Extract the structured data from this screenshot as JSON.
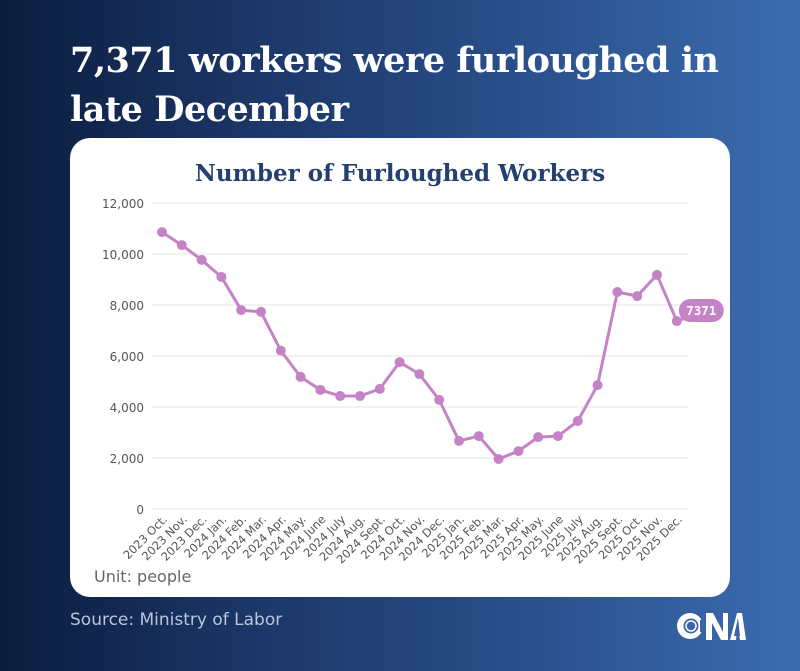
{
  "headline": "7,371 workers were furloughed in late December",
  "unit_label": "Unit: people",
  "source": "Source: Ministry of Labor",
  "logo": {
    "name": "cna-logo",
    "text": "CNA"
  },
  "colors": {
    "line": "#c583c7",
    "title": "#24406f",
    "grid": "#e6e6e6",
    "axis_text": "#555555"
  },
  "chart_data": {
    "type": "line",
    "title": "Number of Furloughed Workers",
    "xlabel": "",
    "ylabel": "",
    "unit": "people",
    "ylim": [
      0,
      12000
    ],
    "yticks": [
      0,
      2000,
      4000,
      6000,
      8000,
      10000,
      12000
    ],
    "ytick_labels": [
      "0",
      "2,000",
      "4,000",
      "6,000",
      "8,000",
      "10,000",
      "12,000"
    ],
    "grid": true,
    "legend": "none",
    "categories": [
      "2023 Oct.",
      "2023 Nov.",
      "2023 Dec.",
      "2024 Jan.",
      "2024 Feb.",
      "2024 Mar.",
      "2024 Apr.",
      "2024 May.",
      "2024 June",
      "2024 July",
      "2024 Aug.",
      "2024 Sept.",
      "2024 Oct.",
      "2024 Nov.",
      "2024 Dec.",
      "2025 Jan.",
      "2025 Feb.",
      "2025 Mar.",
      "2025 Apr.",
      "2025 May.",
      "2025 June",
      "2025 July",
      "2025 Aug.",
      "2025 Sept.",
      "2025 Oct.",
      "2025 Nov.",
      "2025 Dec."
    ],
    "series": [
      {
        "name": "Number of Furloughed Workers",
        "values": [
          10860,
          10350,
          9770,
          9100,
          7800,
          7730,
          6210,
          5180,
          4670,
          4430,
          4430,
          4710,
          5760,
          5290,
          4280,
          2670,
          2860,
          1960,
          2270,
          2820,
          2860,
          3450,
          4860,
          8510,
          8350,
          9180,
          7371
        ]
      }
    ],
    "annotations": [
      {
        "category": "2025 Dec.",
        "label": "7371"
      }
    ]
  }
}
